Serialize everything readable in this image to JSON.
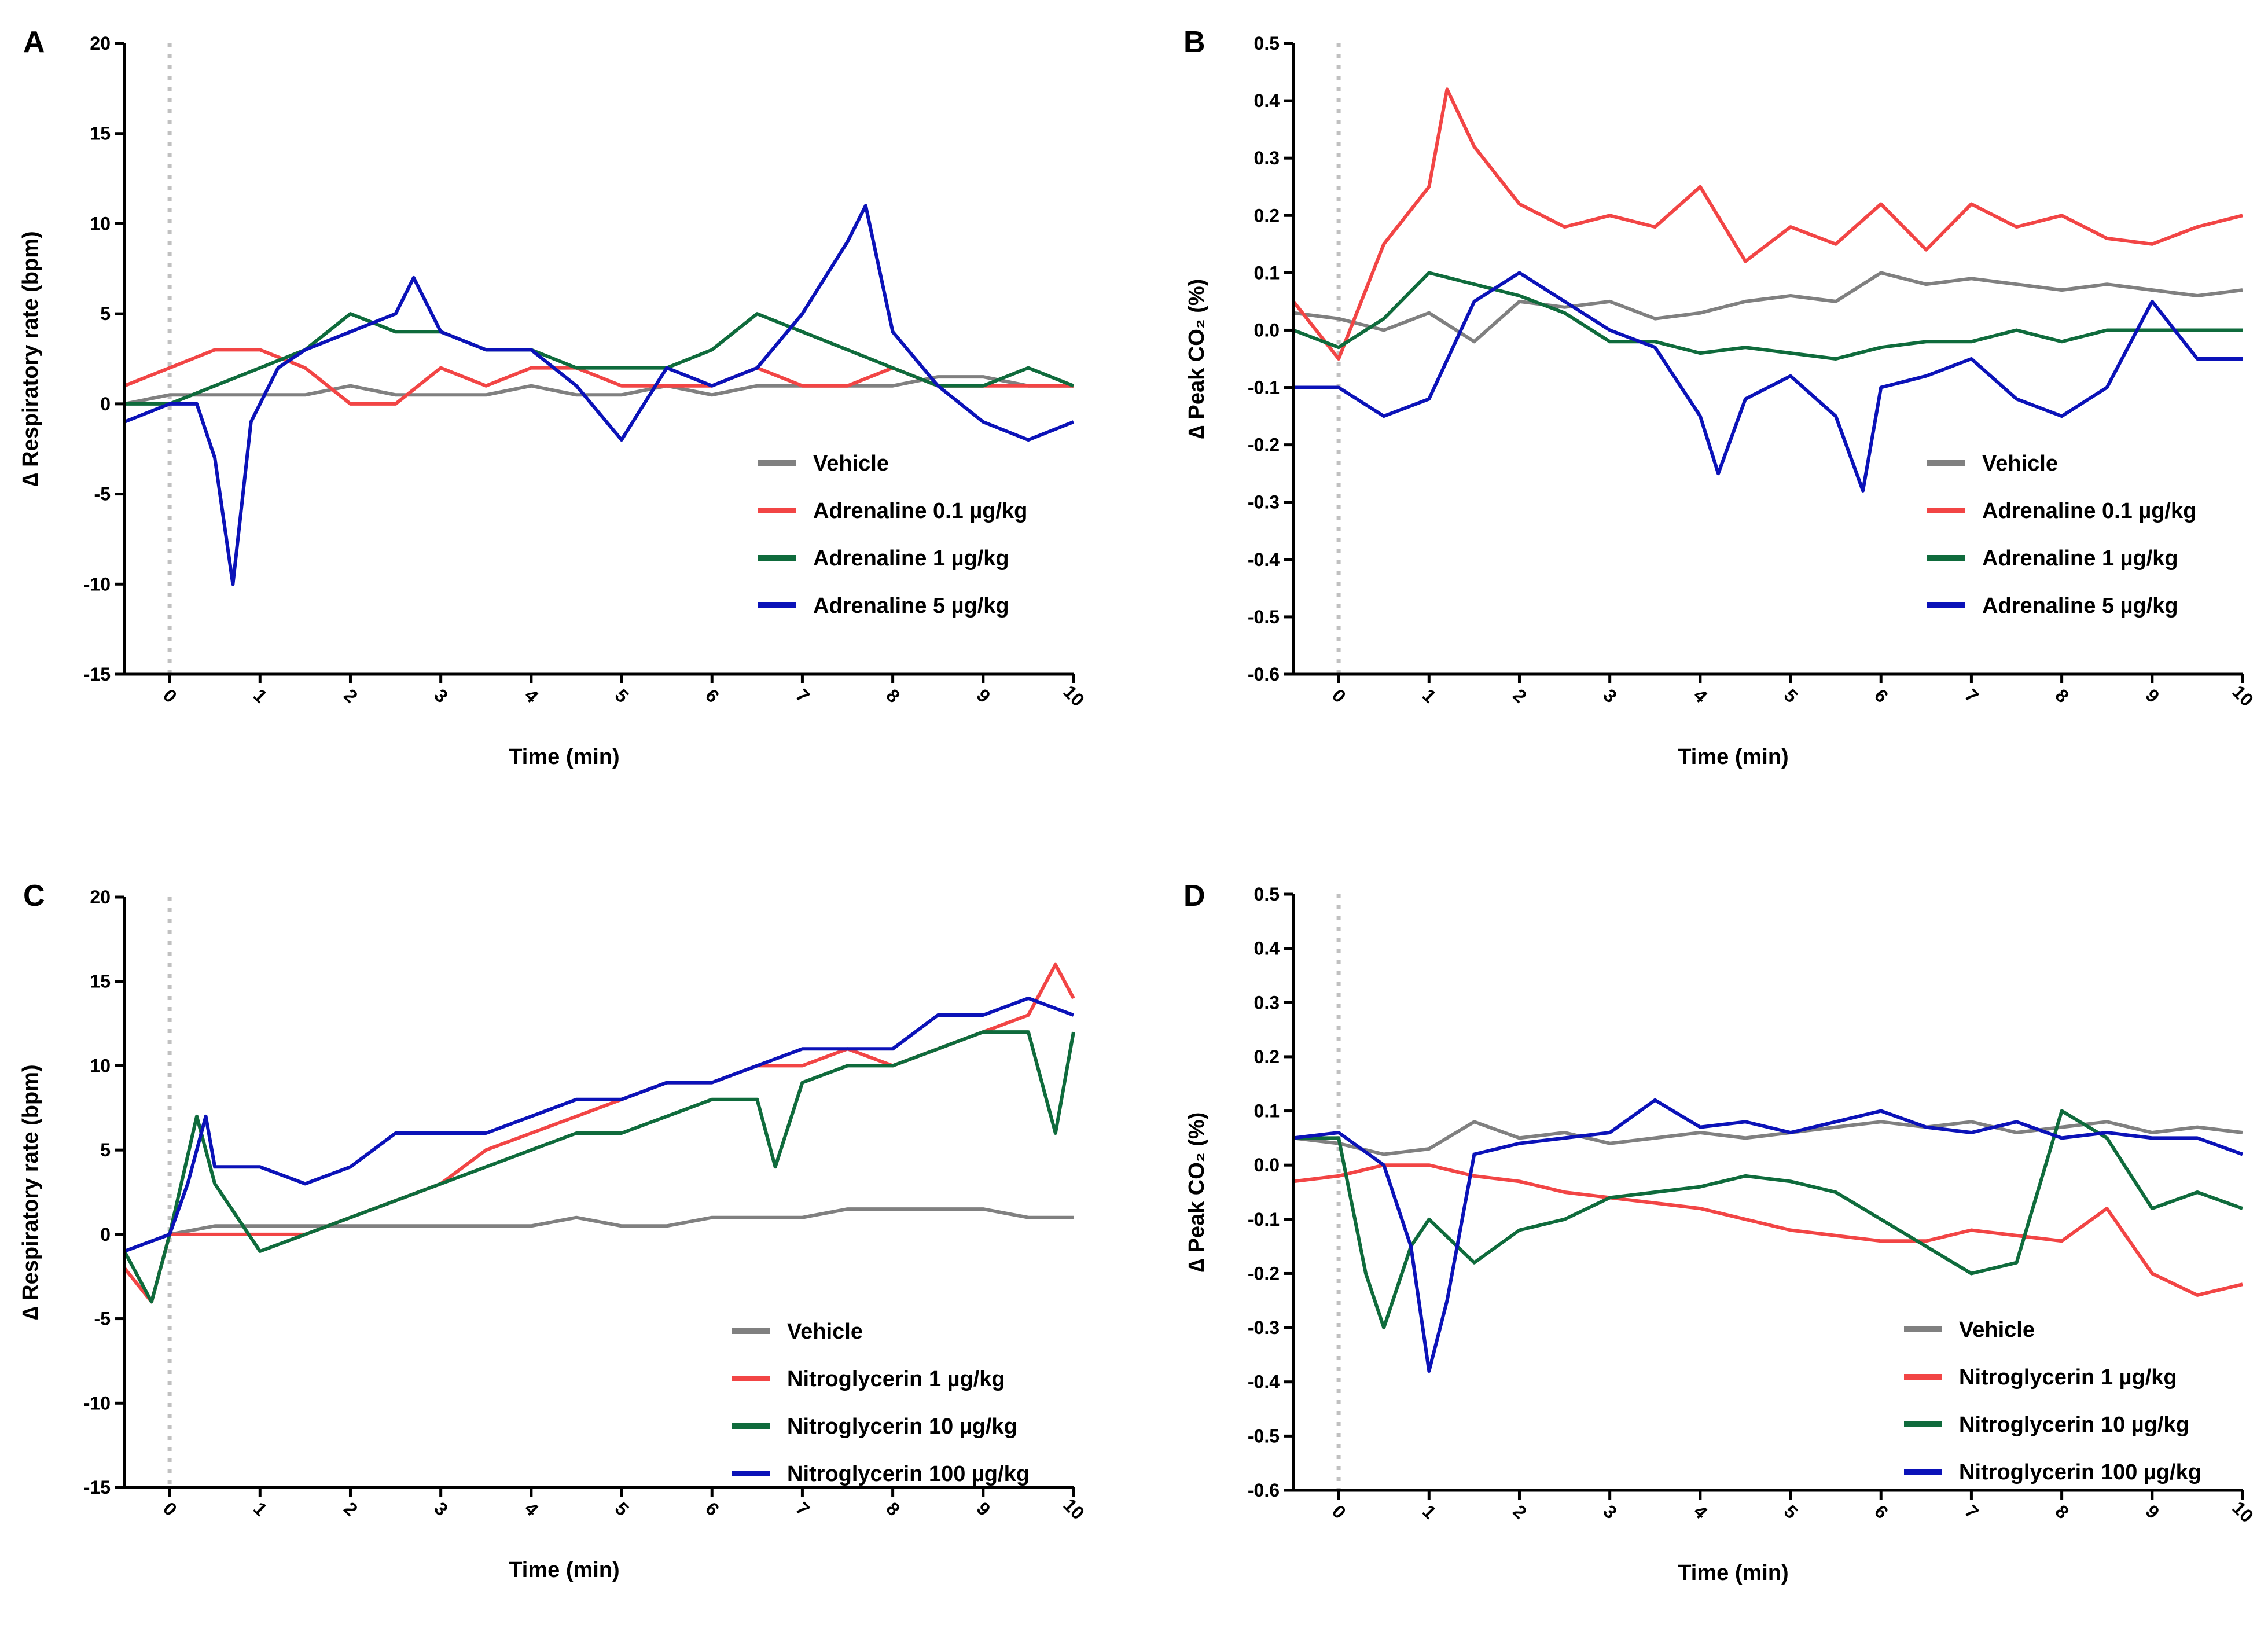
{
  "colors": {
    "vehicle": "#808080",
    "low": "#f24545",
    "mid": "#0f6b3c",
    "high": "#0b12b8"
  },
  "chart_data": [
    {
      "panel": "A",
      "type": "line",
      "xlabel": "Time (min)",
      "ylabel": "∆ Respiratory rate (bpm)",
      "xlim": [
        -0.5,
        10
      ],
      "ylim": [
        -15,
        20
      ],
      "xticks": [
        "0",
        "1",
        "2",
        "3",
        "4",
        "5",
        "6",
        "7",
        "8",
        "9",
        "10"
      ],
      "yticks": [
        "-15",
        "-10",
        "-5",
        "0",
        "5",
        "10",
        "15",
        "20"
      ],
      "legend_position": "lower-right",
      "series": [
        {
          "name": "Vehicle",
          "color_key": "vehicle",
          "x": [
            -0.5,
            0,
            0.5,
            1,
            1.5,
            2,
            2.5,
            3,
            3.5,
            4,
            4.5,
            5,
            5.5,
            6,
            6.5,
            7,
            7.5,
            8,
            8.5,
            9,
            9.5,
            10
          ],
          "y": [
            0,
            0.5,
            0.5,
            0.5,
            0.5,
            1,
            0.5,
            0.5,
            0.5,
            1,
            0.5,
            0.5,
            1,
            0.5,
            1,
            1,
            1,
            1,
            1.5,
            1.5,
            1,
            1
          ]
        },
        {
          "name": "Adrenaline 0.1 µg/kg",
          "color_key": "low",
          "x": [
            -0.5,
            0,
            0.5,
            1,
            1.5,
            2,
            2.5,
            3,
            3.5,
            4,
            4.5,
            5,
            5.5,
            6,
            6.5,
            7,
            7.5,
            8,
            8.5,
            9,
            9.5,
            10
          ],
          "y": [
            1,
            2,
            3,
            3,
            2,
            0,
            0,
            2,
            1,
            2,
            2,
            1,
            1,
            1,
            2,
            1,
            1,
            2,
            1,
            1,
            1,
            1
          ]
        },
        {
          "name": "Adrenaline 1 µg/kg",
          "color_key": "mid",
          "x": [
            -0.5,
            0,
            0.5,
            1,
            1.5,
            2,
            2.5,
            3,
            3.5,
            4,
            4.5,
            5,
            5.5,
            6,
            6.5,
            7,
            7.5,
            8,
            8.5,
            9,
            9.5,
            10
          ],
          "y": [
            0,
            0,
            1,
            2,
            3,
            5,
            4,
            4,
            3,
            3,
            2,
            2,
            2,
            3,
            5,
            4,
            3,
            2,
            1,
            1,
            2,
            1
          ]
        },
        {
          "name": "Adrenaline 5 µg/kg",
          "color_key": "high",
          "x": [
            -0.5,
            0,
            0.3,
            0.5,
            0.7,
            0.9,
            1.2,
            1.5,
            2,
            2.5,
            2.7,
            3,
            3.5,
            4,
            4.5,
            5,
            5.5,
            6,
            6.5,
            7,
            7.5,
            7.7,
            8,
            8.5,
            9,
            9.5,
            10
          ],
          "y": [
            -1,
            0,
            0,
            -3,
            -10,
            -1,
            2,
            3,
            4,
            5,
            7,
            4,
            3,
            3,
            1,
            -2,
            2,
            1,
            2,
            5,
            9,
            11,
            4,
            1,
            -1,
            -2,
            -1
          ]
        }
      ]
    },
    {
      "panel": "B",
      "type": "line",
      "xlabel": "Time (min)",
      "ylabel": "∆ Peak CO₂ (%)",
      "xlim": [
        -0.5,
        10
      ],
      "ylim": [
        -0.6,
        0.5
      ],
      "xticks": [
        "0",
        "1",
        "2",
        "3",
        "4",
        "5",
        "6",
        "7",
        "8",
        "9",
        "10"
      ],
      "yticks": [
        "-0.6",
        "-0.5",
        "-0.4",
        "-0.3",
        "-0.2",
        "-0.1",
        "0.0",
        "0.1",
        "0.2",
        "0.3",
        "0.4",
        "0.5"
      ],
      "legend_position": "lower-right",
      "series": [
        {
          "name": "Vehicle",
          "color_key": "vehicle",
          "x": [
            -0.5,
            0,
            0.5,
            1,
            1.5,
            2,
            2.5,
            3,
            3.5,
            4,
            4.5,
            5,
            5.5,
            6,
            6.5,
            7,
            7.5,
            8,
            8.5,
            9,
            9.5,
            10
          ],
          "y": [
            0.03,
            0.02,
            0,
            0.03,
            -0.02,
            0.05,
            0.04,
            0.05,
            0.02,
            0.03,
            0.05,
            0.06,
            0.05,
            0.1,
            0.08,
            0.09,
            0.08,
            0.07,
            0.08,
            0.07,
            0.06,
            0.07
          ]
        },
        {
          "name": "Adrenaline 0.1 µg/kg",
          "color_key": "low",
          "x": [
            -0.5,
            0,
            0.5,
            1,
            1.2,
            1.5,
            2,
            2.5,
            3,
            3.5,
            4,
            4.5,
            5,
            5.5,
            6,
            6.5,
            7,
            7.5,
            8,
            8.5,
            9,
            9.5,
            10
          ],
          "y": [
            0.05,
            -0.05,
            0.15,
            0.25,
            0.42,
            0.32,
            0.22,
            0.18,
            0.2,
            0.18,
            0.25,
            0.12,
            0.18,
            0.15,
            0.22,
            0.14,
            0.22,
            0.18,
            0.2,
            0.16,
            0.15,
            0.18,
            0.2
          ]
        },
        {
          "name": "Adrenaline 1 µg/kg",
          "color_key": "mid",
          "x": [
            -0.5,
            0,
            0.5,
            1,
            1.5,
            2,
            2.5,
            3,
            3.5,
            4,
            4.5,
            5,
            5.5,
            6,
            6.5,
            7,
            7.5,
            8,
            8.5,
            9,
            9.5,
            10
          ],
          "y": [
            0,
            -0.03,
            0.02,
            0.1,
            0.08,
            0.06,
            0.03,
            -0.02,
            -0.02,
            -0.04,
            -0.03,
            -0.04,
            -0.05,
            -0.03,
            -0.02,
            -0.02,
            0,
            -0.02,
            0,
            0,
            0,
            0
          ]
        },
        {
          "name": "Adrenaline 5 µg/kg",
          "color_key": "high",
          "x": [
            -0.5,
            0,
            0.5,
            1,
            1.5,
            2,
            2.5,
            3,
            3.5,
            4,
            4.2,
            4.5,
            5,
            5.5,
            5.8,
            6,
            6.5,
            7,
            7.5,
            8,
            8.5,
            9,
            9.5,
            10
          ],
          "y": [
            -0.1,
            -0.1,
            -0.15,
            -0.12,
            0.05,
            0.1,
            0.05,
            0,
            -0.03,
            -0.15,
            -0.25,
            -0.12,
            -0.08,
            -0.15,
            -0.28,
            -0.1,
            -0.08,
            -0.05,
            -0.12,
            -0.15,
            -0.1,
            0.05,
            -0.05,
            -0.05
          ]
        }
      ]
    },
    {
      "panel": "C",
      "type": "line",
      "xlabel": "Time (min)",
      "ylabel": "∆ Respiratory rate (bpm)",
      "xlim": [
        -0.5,
        10
      ],
      "ylim": [
        -15,
        20
      ],
      "xticks": [
        "0",
        "1",
        "2",
        "3",
        "4",
        "5",
        "6",
        "7",
        "8",
        "9",
        "10"
      ],
      "yticks": [
        "-15",
        "-10",
        "-5",
        "0",
        "5",
        "10",
        "15",
        "20"
      ],
      "legend_position": "lower-right",
      "series": [
        {
          "name": "Vehicle",
          "color_key": "vehicle",
          "x": [
            -0.5,
            0,
            0.5,
            1,
            1.5,
            2,
            2.5,
            3,
            3.5,
            4,
            4.5,
            5,
            5.5,
            6,
            6.5,
            7,
            7.5,
            8,
            8.5,
            9,
            9.5,
            10
          ],
          "y": [
            -1,
            0,
            0.5,
            0.5,
            0.5,
            0.5,
            0.5,
            0.5,
            0.5,
            0.5,
            1,
            0.5,
            0.5,
            1,
            1,
            1,
            1.5,
            1.5,
            1.5,
            1.5,
            1,
            1
          ]
        },
        {
          "name": "Nitroglycerin 1 µg/kg",
          "color_key": "low",
          "x": [
            -0.5,
            -0.2,
            0,
            0.5,
            1,
            1.5,
            2,
            2.5,
            3,
            3.5,
            4,
            4.5,
            5,
            5.5,
            6,
            6.5,
            7,
            7.5,
            8,
            8.5,
            9,
            9.5,
            9.8,
            10
          ],
          "y": [
            -2,
            -4,
            0,
            0,
            0,
            0,
            1,
            2,
            3,
            5,
            6,
            7,
            8,
            9,
            9,
            10,
            10,
            11,
            10,
            11,
            12,
            13,
            16,
            14
          ]
        },
        {
          "name": "Nitroglycerin 10 µg/kg",
          "color_key": "mid",
          "x": [
            -0.5,
            -0.2,
            0,
            0.3,
            0.5,
            1,
            1.5,
            2,
            2.5,
            3,
            3.5,
            4,
            4.5,
            5,
            5.5,
            6,
            6.5,
            6.7,
            7,
            7.5,
            8,
            8.5,
            9,
            9.5,
            9.8,
            10
          ],
          "y": [
            -1,
            -4,
            0,
            7,
            3,
            -1,
            0,
            1,
            2,
            3,
            4,
            5,
            6,
            6,
            7,
            8,
            8,
            4,
            9,
            10,
            10,
            11,
            12,
            12,
            6,
            12
          ]
        },
        {
          "name": "Nitroglycerin 100 µg/kg",
          "color_key": "high",
          "x": [
            -0.5,
            0,
            0.2,
            0.4,
            0.5,
            1,
            1.5,
            2,
            2.5,
            3,
            3.5,
            4,
            4.5,
            5,
            5.5,
            6,
            6.5,
            7,
            7.5,
            8,
            8.5,
            9,
            9.5,
            10
          ],
          "y": [
            -1,
            0,
            3,
            7,
            4,
            4,
            3,
            4,
            6,
            6,
            6,
            7,
            8,
            8,
            9,
            9,
            10,
            11,
            11,
            11,
            13,
            13,
            14,
            13
          ]
        }
      ]
    },
    {
      "panel": "D",
      "type": "line",
      "xlabel": "Time (min)",
      "ylabel": "∆ Peak CO₂ (%)",
      "xlim": [
        -0.5,
        10
      ],
      "ylim": [
        -0.6,
        0.5
      ],
      "xticks": [
        "0",
        "1",
        "2",
        "3",
        "4",
        "5",
        "6",
        "7",
        "8",
        "9",
        "10"
      ],
      "yticks": [
        "-0.6",
        "-0.5",
        "-0.4",
        "-0.3",
        "-0.2",
        "-0.1",
        "0.0",
        "0.1",
        "0.2",
        "0.3",
        "0.4",
        "0.5"
      ],
      "legend_position": "lower-right",
      "series": [
        {
          "name": "Vehicle",
          "color_key": "vehicle",
          "x": [
            -0.5,
            0,
            0.5,
            1,
            1.5,
            2,
            2.5,
            3,
            3.5,
            4,
            4.5,
            5,
            5.5,
            6,
            6.5,
            7,
            7.5,
            8,
            8.5,
            9,
            9.5,
            10
          ],
          "y": [
            0.05,
            0.04,
            0.02,
            0.03,
            0.08,
            0.05,
            0.06,
            0.04,
            0.05,
            0.06,
            0.05,
            0.06,
            0.07,
            0.08,
            0.07,
            0.08,
            0.06,
            0.07,
            0.08,
            0.06,
            0.07,
            0.06
          ]
        },
        {
          "name": "Nitroglycerin 1 µg/kg",
          "color_key": "low",
          "x": [
            -0.5,
            0,
            0.5,
            1,
            1.5,
            2,
            2.5,
            3,
            3.5,
            4,
            4.5,
            5,
            5.5,
            6,
            6.5,
            7,
            7.5,
            8,
            8.5,
            9,
            9.5,
            10
          ],
          "y": [
            -0.03,
            -0.02,
            0,
            0,
            -0.02,
            -0.03,
            -0.05,
            -0.06,
            -0.07,
            -0.08,
            -0.1,
            -0.12,
            -0.13,
            -0.14,
            -0.14,
            -0.12,
            -0.13,
            -0.14,
            -0.08,
            -0.2,
            -0.24,
            -0.22
          ]
        },
        {
          "name": "Nitroglycerin 10 µg/kg",
          "color_key": "mid",
          "x": [
            -0.5,
            0,
            0.3,
            0.5,
            0.8,
            1,
            1.5,
            2,
            2.5,
            3,
            3.5,
            4,
            4.5,
            5,
            5.5,
            6,
            6.5,
            7,
            7.5,
            8,
            8.5,
            9,
            9.5,
            10
          ],
          "y": [
            0.05,
            0.05,
            -0.2,
            -0.3,
            -0.15,
            -0.1,
            -0.18,
            -0.12,
            -0.1,
            -0.06,
            -0.05,
            -0.04,
            -0.02,
            -0.03,
            -0.05,
            -0.1,
            -0.15,
            -0.2,
            -0.18,
            0.1,
            0.05,
            -0.08,
            -0.05,
            -0.08
          ]
        },
        {
          "name": "Nitroglycerin 100 µg/kg",
          "color_key": "high",
          "x": [
            -0.5,
            0,
            0.5,
            0.8,
            1,
            1.2,
            1.5,
            2,
            2.5,
            3,
            3.5,
            4,
            4.5,
            5,
            5.5,
            6,
            6.5,
            7,
            7.5,
            8,
            8.5,
            9,
            9.5,
            10
          ],
          "y": [
            0.05,
            0.06,
            0,
            -0.15,
            -0.38,
            -0.25,
            0.02,
            0.04,
            0.05,
            0.06,
            0.12,
            0.07,
            0.08,
            0.06,
            0.08,
            0.1,
            0.07,
            0.06,
            0.08,
            0.05,
            0.06,
            0.05,
            0.05,
            0.02
          ]
        }
      ]
    }
  ]
}
